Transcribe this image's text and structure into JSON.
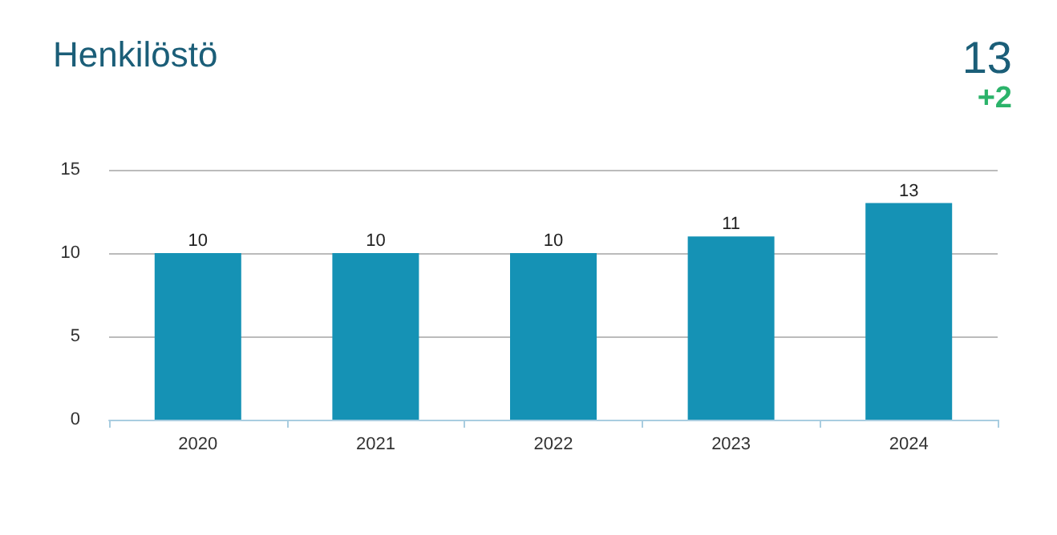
{
  "chart_data": {
    "type": "bar",
    "title": "Henkilöstö",
    "annotations": [
      "13",
      "+2"
    ],
    "categories": [
      "2020",
      "2021",
      "2022",
      "2023",
      "2024"
    ],
    "values": [
      10,
      10,
      10,
      11,
      13
    ],
    "color": "#1592b5",
    "ylim": [
      0,
      15
    ],
    "yticks": [
      0,
      5,
      10,
      15
    ],
    "grid": "y",
    "data_labels": true
  }
}
